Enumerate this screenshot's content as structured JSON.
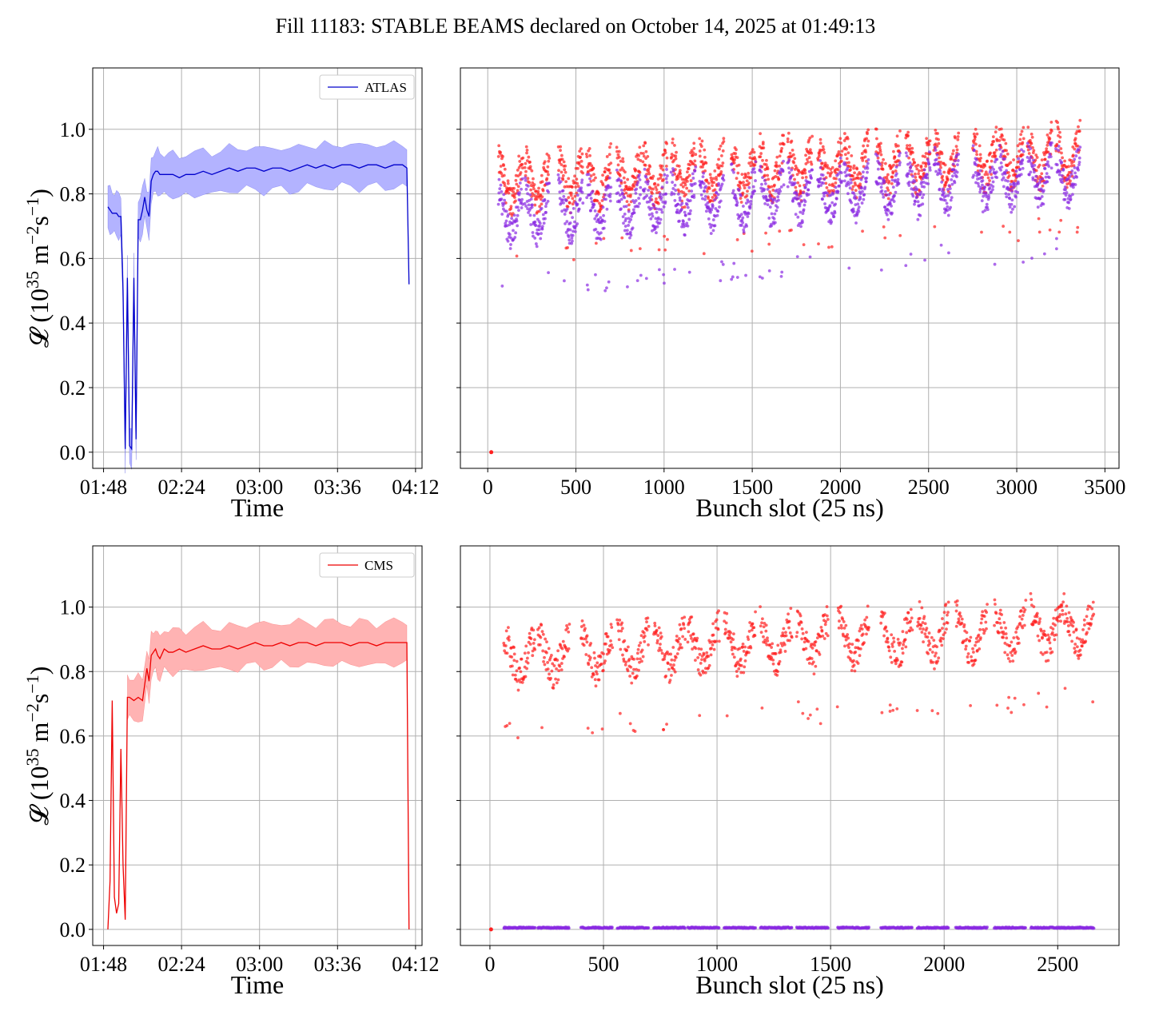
{
  "figure": {
    "title": "Fill 11183: STABLE BEAMS declared on October 14, 2025 at 01:49:13"
  },
  "colors": {
    "atlas_line": "#0000cc",
    "atlas_band": "#b3b3ff",
    "cms_line": "#ee0000",
    "cms_band": "#ffb3b3",
    "red_points": "#ff2020",
    "purple_points": "#8a2be2",
    "grid": "#b0b0b0"
  },
  "chart_data": [
    {
      "id": "atlas_time",
      "type": "line",
      "legend": [
        "ATLAS"
      ],
      "legend_position": "top-right",
      "xlabel": "Time",
      "ylabel": "𝓛 (10^35 m^-2 s^-1)",
      "xticks": [
        "01:48",
        "02:24",
        "03:00",
        "03:36",
        "04:12"
      ],
      "yticks": [
        "0.0",
        "0.2",
        "0.4",
        "0.6",
        "0.8",
        "1.0"
      ],
      "xlim_minutes_after_01_48": [
        -5,
        147
      ],
      "ylim": [
        -0.05,
        1.19
      ],
      "grid": true,
      "series": [
        {
          "name": "ATLAS",
          "x_minutes_after_01_48": [
            2,
            3,
            4,
            5,
            6,
            7,
            8,
            9,
            10,
            11,
            12,
            13,
            14,
            15,
            16,
            17,
            18,
            19,
            20,
            21,
            22,
            23,
            24,
            25,
            26,
            28,
            30,
            32,
            35,
            38,
            42,
            46,
            50,
            54,
            58,
            62,
            66,
            70,
            74,
            78,
            82,
            86,
            90,
            94,
            98,
            102,
            106,
            110,
            114,
            118,
            122,
            126,
            130,
            134,
            138,
            140,
            141
          ],
          "y": [
            0.76,
            0.75,
            0.74,
            0.74,
            0.74,
            0.73,
            0.73,
            0.5,
            0.01,
            0.54,
            0.02,
            0.01,
            0.54,
            0.04,
            0.72,
            0.72,
            0.75,
            0.79,
            0.75,
            0.73,
            0.84,
            0.86,
            0.87,
            0.87,
            0.86,
            0.86,
            0.86,
            0.86,
            0.85,
            0.86,
            0.86,
            0.87,
            0.86,
            0.87,
            0.88,
            0.87,
            0.88,
            0.88,
            0.87,
            0.88,
            0.88,
            0.87,
            0.88,
            0.89,
            0.88,
            0.89,
            0.88,
            0.89,
            0.89,
            0.88,
            0.89,
            0.89,
            0.88,
            0.89,
            0.89,
            0.88,
            0.52
          ],
          "band_half_width": 0.065
        }
      ]
    },
    {
      "id": "atlas_bunch",
      "type": "scatter",
      "xlabel": "Bunch slot (25 ns)",
      "xticks": [
        "0",
        "500",
        "1000",
        "1500",
        "2000",
        "2500",
        "3000",
        "3500"
      ],
      "xlim": [
        -155,
        3580
      ],
      "ylim": [
        -0.05,
        1.19
      ],
      "grid": true,
      "trains_start": [
        60,
        210,
        400,
        560,
        730,
        880,
        1040,
        1200,
        1380,
        1540,
        1700,
        1870,
        2020,
        2200,
        2370,
        2530,
        2750,
        2900,
        3060,
        3220
      ],
      "train_length": 140,
      "series": [
        {
          "name": "",
          "color": "red",
          "baseline": 0.82,
          "trend": 0.08,
          "spread": 0.05
        },
        {
          "name": "",
          "color": "purple",
          "baseline": 0.72,
          "trend": 0.12,
          "spread": 0.05
        }
      ],
      "point_at_zero": {
        "x": 20,
        "y": 0.0
      }
    },
    {
      "id": "cms_time",
      "type": "line",
      "legend": [
        "CMS"
      ],
      "legend_position": "top-right",
      "xlabel": "Time",
      "ylabel": "𝓛 (10^35 m^-2 s^-1)",
      "xticks": [
        "01:48",
        "02:24",
        "03:00",
        "03:36",
        "04:12"
      ],
      "yticks": [
        "0.0",
        "0.2",
        "0.4",
        "0.6",
        "0.8",
        "1.0"
      ],
      "xlim_minutes_after_01_48": [
        -5,
        147
      ],
      "ylim": [
        -0.05,
        1.19
      ],
      "grid": true,
      "series": [
        {
          "name": "CMS",
          "x_minutes_after_01_48": [
            2,
            3,
            4,
            5,
            6,
            7,
            8,
            9,
            10,
            11,
            12,
            14,
            16,
            18,
            20,
            21,
            22,
            23,
            24,
            25,
            26,
            28,
            30,
            32,
            35,
            38,
            42,
            46,
            50,
            54,
            58,
            62,
            66,
            70,
            74,
            78,
            82,
            86,
            90,
            94,
            98,
            102,
            106,
            110,
            114,
            118,
            122,
            126,
            130,
            134,
            138,
            140,
            141
          ],
          "y": [
            0.0,
            0.15,
            0.71,
            0.1,
            0.05,
            0.08,
            0.56,
            0.2,
            0.03,
            0.72,
            0.72,
            0.71,
            0.72,
            0.71,
            0.81,
            0.77,
            0.85,
            0.86,
            0.87,
            0.85,
            0.84,
            0.87,
            0.86,
            0.86,
            0.87,
            0.86,
            0.87,
            0.88,
            0.87,
            0.87,
            0.88,
            0.87,
            0.88,
            0.89,
            0.88,
            0.88,
            0.89,
            0.88,
            0.89,
            0.89,
            0.88,
            0.89,
            0.89,
            0.89,
            0.88,
            0.89,
            0.89,
            0.88,
            0.89,
            0.89,
            0.89,
            0.89,
            0.0
          ],
          "band_half_width": 0.065,
          "band_start_minute": 11
        }
      ]
    },
    {
      "id": "cms_bunch",
      "type": "scatter",
      "xlabel": "Bunch slot (25 ns)",
      "xticks": [
        "0",
        "500",
        "1000",
        "1500",
        "2000",
        "2500"
      ],
      "xlim": [
        -130,
        2770
      ],
      "ylim": [
        -0.05,
        1.19
      ],
      "grid": true,
      "trains_start": [
        60,
        210,
        400,
        560,
        720,
        870,
        1030,
        1190,
        1350,
        1530,
        1720,
        1880,
        2050,
        2220,
        2380,
        2520
      ],
      "train_length": 140,
      "series": [
        {
          "name": "",
          "color": "red",
          "baseline": 0.83,
          "trend": 0.09,
          "spread": 0.05
        },
        {
          "name": "",
          "color": "purple",
          "baseline": 0.005,
          "trend": 0.0,
          "spread": 0.002
        }
      ],
      "point_at_zero": {
        "x": 5,
        "y": 0.0
      }
    }
  ]
}
